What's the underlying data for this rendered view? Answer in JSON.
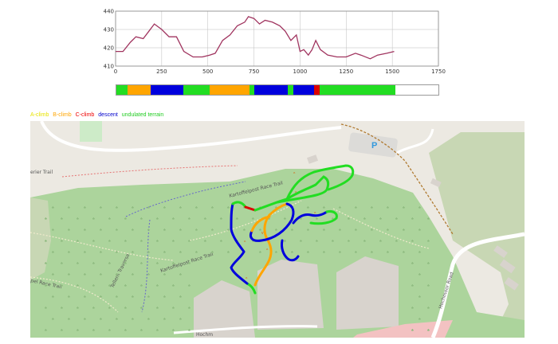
{
  "chart_data": {
    "type": "line",
    "title": "",
    "xlabel": "",
    "ylabel": "",
    "xlim": [
      0,
      1750
    ],
    "ylim": [
      410,
      440
    ],
    "x_ticks": [
      "0",
      "250",
      "500",
      "750",
      "1000",
      "1250",
      "1500",
      "1750"
    ],
    "y_ticks": [
      "410",
      "420",
      "430",
      "440"
    ],
    "grid": true,
    "series": [
      {
        "color": "#a0345f",
        "x": [
          0,
          40,
          80,
          110,
          150,
          180,
          210,
          250,
          290,
          330,
          370,
          420,
          470,
          510,
          540,
          580,
          620,
          660,
          700,
          720,
          750,
          780,
          810,
          850,
          890,
          920,
          950,
          980,
          1000,
          1020,
          1045,
          1065,
          1085,
          1110,
          1150,
          1200,
          1250,
          1300,
          1330,
          1380,
          1420,
          1470,
          1510
        ],
        "y": [
          418,
          418,
          423,
          426,
          425,
          429,
          433,
          430,
          426,
          426,
          418,
          415,
          415,
          416,
          417,
          424,
          427,
          432,
          434,
          437,
          436,
          433,
          435,
          434,
          432,
          429,
          424,
          427,
          418,
          419,
          416,
          419,
          424,
          419,
          416,
          415,
          415,
          417,
          416,
          414,
          416,
          417,
          418
        ]
      }
    ]
  },
  "segments": {
    "total": 1750,
    "items": [
      {
        "start": 0,
        "end": 60,
        "color": "#22dd22"
      },
      {
        "start": 60,
        "end": 185,
        "color": "#ffa500"
      },
      {
        "start": 185,
        "end": 365,
        "color": "#0000dd"
      },
      {
        "start": 365,
        "end": 505,
        "color": "#22dd22"
      },
      {
        "start": 505,
        "end": 725,
        "color": "#ffa500"
      },
      {
        "start": 725,
        "end": 750,
        "color": "#22dd22"
      },
      {
        "start": 750,
        "end": 930,
        "color": "#0000dd"
      },
      {
        "start": 930,
        "end": 960,
        "color": "#22dd22"
      },
      {
        "start": 960,
        "end": 1075,
        "color": "#0000dd"
      },
      {
        "start": 1075,
        "end": 1105,
        "color": "#dd0000"
      },
      {
        "start": 1105,
        "end": 1515,
        "color": "#22dd22"
      }
    ]
  },
  "legend": [
    {
      "label": "A-climb",
      "color": "#e8e300"
    },
    {
      "label": "B-climb",
      "color": "#ffa500"
    },
    {
      "label": "C-climb",
      "color": "#ee0000"
    },
    {
      "label": "descent",
      "color": "#0000cc"
    },
    {
      "label": "undulated terrain",
      "color": "#22cc22"
    }
  ],
  "map": {
    "parking_label": "P",
    "labels": {
      "trail_top": "erier Trail",
      "trail_kartoffel_1": "Kartoffelpost Race Trail",
      "trail_kartoffel_2": "Kartoffelpost Race Trail",
      "trail_race_left": "pel Race Trail",
      "trail_traverse": "Tellern Traverse",
      "road_right": "Hochmoor Road",
      "bottom_label": "Hochm"
    },
    "colors": {
      "forest": "#acd49c",
      "ground": "#ece9e2",
      "scrub": "#c8d7b4",
      "building": "#d8d3cd",
      "parking": "#dcdbd8",
      "pink": "#f3c2c2"
    }
  }
}
